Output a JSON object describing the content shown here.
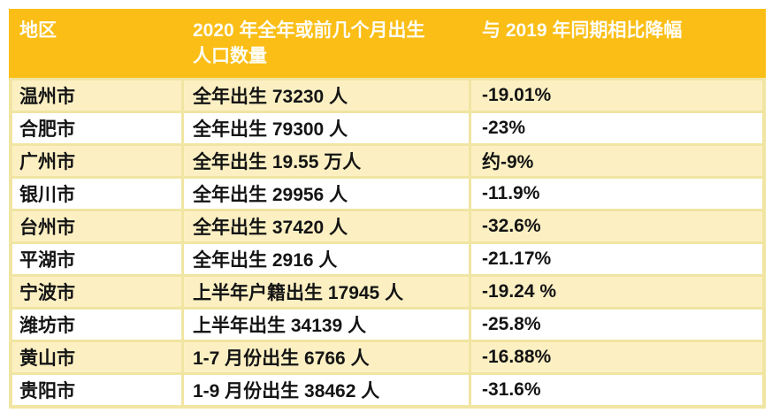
{
  "chart_data": {
    "type": "table",
    "columns": [
      "地区",
      "2020 年全年或前几个月出生人口数量",
      "与 2019 年同期相比降幅"
    ],
    "rows": [
      [
        "温州市",
        "全年出生 73230 人",
        "-19.01%"
      ],
      [
        "合肥市",
        "全年出生 79300 人",
        "-23%"
      ],
      [
        "广州市",
        "全年出生 19.55 万人",
        "约-9%"
      ],
      [
        "银川市",
        "全年出生 29956 人",
        "-11.9%"
      ],
      [
        "台州市",
        "全年出生 37420 人",
        "-32.6%"
      ],
      [
        "平湖市",
        "全年出生 2916 人",
        "-21.17%"
      ],
      [
        "宁波市",
        "上半年户籍出生 17945 人",
        "-19.24 %"
      ],
      [
        "潍坊市",
        "上半年出生 34139 人",
        "-25.8%"
      ],
      [
        "黄山市",
        "1-7 月份出生 6766 人",
        "-16.88%"
      ],
      [
        "贵阳市",
        "1-9 月份出生 38462 人",
        "-31.6%"
      ]
    ]
  },
  "header": {
    "region": "地区",
    "births_line1": "2020 年全年或前几个月出生",
    "births_line2": "人口数量",
    "decline": "与 2019 年同期相比降幅"
  },
  "colors": {
    "header_bg": "#FBBE16",
    "header_text": "#FFFFFF",
    "row_alt_bg": "#FCF0C3",
    "row_bg": "#FFFFFF",
    "grid_line": "#F0E5A2",
    "body_text": "#141414"
  }
}
